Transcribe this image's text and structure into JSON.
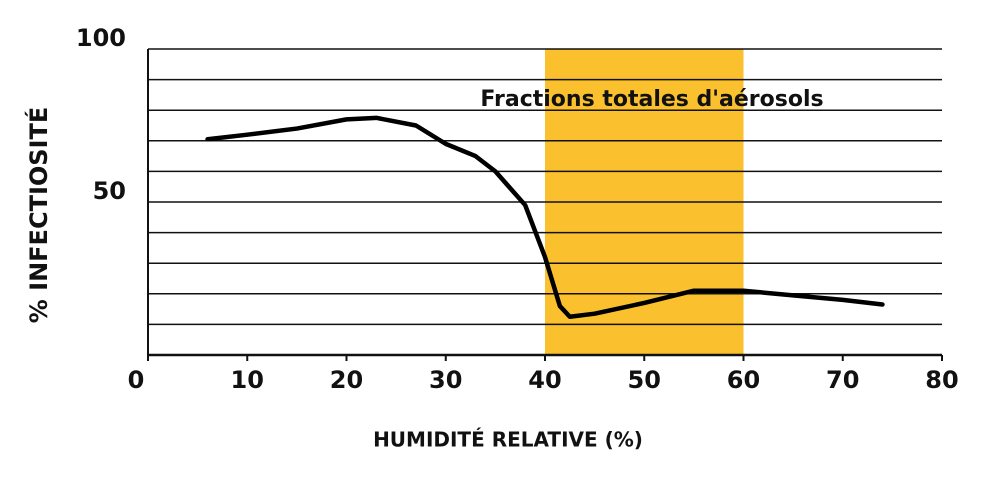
{
  "chart_data": {
    "type": "line",
    "x_label": "HUMIDITÉ RELATIVE (%)",
    "y_label": "% INFECTIOSITÉ",
    "x": [
      6,
      10,
      15,
      20,
      23,
      27,
      30,
      33,
      35,
      38,
      40,
      41.5,
      42.5,
      45,
      50,
      55,
      60,
      65,
      70,
      74
    ],
    "series": [
      {
        "name": "Infectiosité",
        "color": "#000000",
        "values": [
          70.5,
          72,
          74,
          77,
          77.5,
          75,
          69,
          65,
          60,
          49,
          32,
          16,
          12.5,
          13.5,
          17,
          21,
          21,
          19.5,
          18,
          16.5
        ]
      }
    ],
    "xlim": [
      0,
      80
    ],
    "xticks": [
      0,
      10,
      20,
      30,
      40,
      50,
      60,
      70,
      80
    ],
    "ylim": [
      0,
      100
    ],
    "yticks": [
      50,
      100
    ],
    "ygrid": [
      10,
      20,
      30,
      40,
      50,
      60,
      70,
      80,
      90,
      100
    ],
    "band": {
      "x": [
        40,
        60
      ],
      "color": "#fbc02d",
      "label": "Fractions totales d'aérosols"
    }
  }
}
